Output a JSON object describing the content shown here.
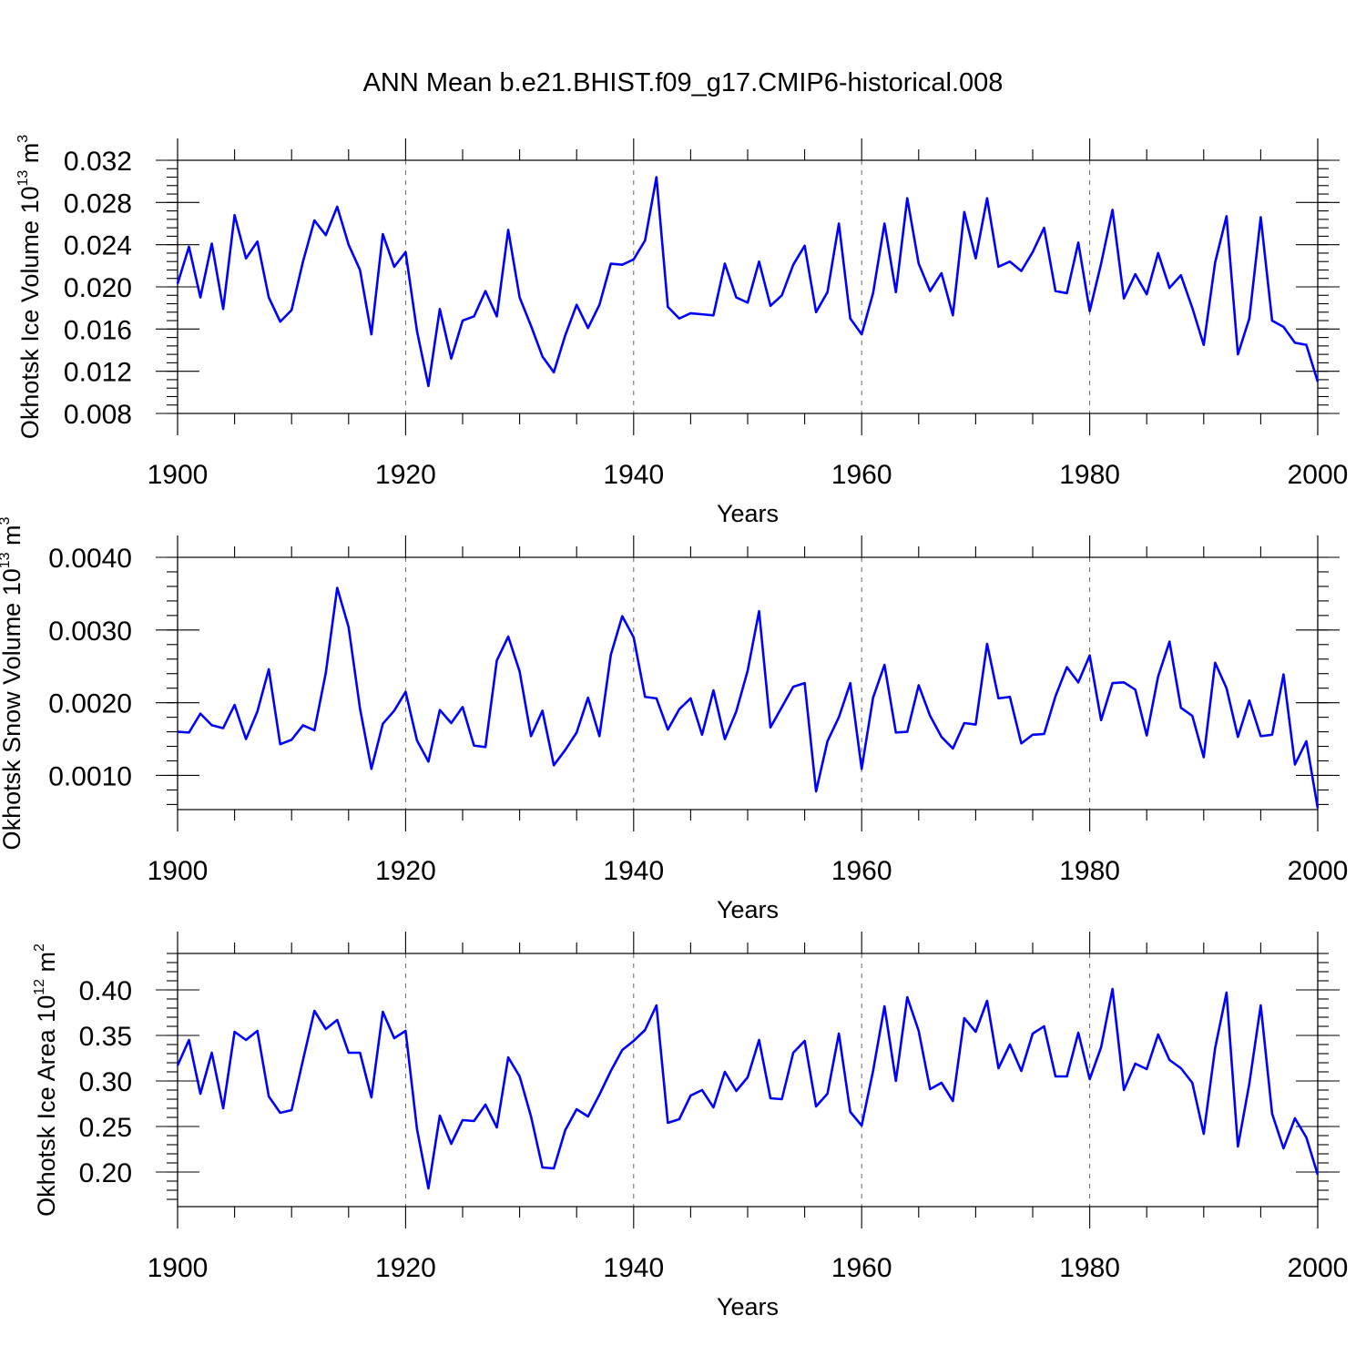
{
  "figure": {
    "title": "ANN Mean b.e21.BHIST.f09_g17.CMIP6-historical.008",
    "line_color": "#0000ff"
  },
  "chart_data": [
    {
      "type": "line",
      "ylabel": "Okhotsk Ice Volume 10",
      "ylabel_exponent": "13",
      "ylabel_unit": "m",
      "ylabel_unit_exponent": "3",
      "xlabel": "Years",
      "xlim": [
        1900,
        2000
      ],
      "ylim": [
        0.008,
        0.032
      ],
      "x_ticks": [
        1900,
        1920,
        1940,
        1960,
        1980,
        2000
      ],
      "y_ticks": [
        "0.008",
        "0.012",
        "0.016",
        "0.020",
        "0.024",
        "0.028",
        "0.032"
      ],
      "grid": "vertical dashed at major x ticks",
      "x_start": 1900,
      "values": [
        0.0203,
        0.0238,
        0.019,
        0.0241,
        0.0179,
        0.0268,
        0.0227,
        0.0243,
        0.019,
        0.0167,
        0.0178,
        0.0224,
        0.0263,
        0.0249,
        0.0276,
        0.024,
        0.0216,
        0.0155,
        0.025,
        0.0219,
        0.0233,
        0.0158,
        0.0106,
        0.0179,
        0.0132,
        0.0168,
        0.0172,
        0.0196,
        0.0172,
        0.0254,
        0.019,
        0.0163,
        0.0134,
        0.0119,
        0.0154,
        0.0183,
        0.0161,
        0.0183,
        0.0222,
        0.0221,
        0.0226,
        0.0244,
        0.0304,
        0.0181,
        0.017,
        0.0175,
        0.0174,
        0.0173,
        0.0222,
        0.019,
        0.0185,
        0.0224,
        0.0182,
        0.0192,
        0.0221,
        0.0239,
        0.0176,
        0.0195,
        0.026,
        0.017,
        0.0155,
        0.0194,
        0.026,
        0.0195,
        0.0284,
        0.0222,
        0.0196,
        0.0213,
        0.0173,
        0.0271,
        0.0227,
        0.0284,
        0.0219,
        0.0224,
        0.0215,
        0.0233,
        0.0256,
        0.0196,
        0.0194,
        0.0242,
        0.0177,
        0.0222,
        0.0273,
        0.0189,
        0.0212,
        0.0193,
        0.0232,
        0.0199,
        0.0211,
        0.018,
        0.0145,
        0.0223,
        0.0267,
        0.0136,
        0.017,
        0.0266,
        0.0168,
        0.0162,
        0.0147,
        0.0145,
        0.011
      ]
    },
    {
      "type": "line",
      "ylabel": "Okhotsk Snow Volume 10",
      "ylabel_exponent": "13",
      "ylabel_unit": "m",
      "ylabel_unit_exponent": "3",
      "xlabel": "Years",
      "xlim": [
        1900,
        2000
      ],
      "ylim": [
        0.00053,
        0.004
      ],
      "x_ticks": [
        1900,
        1920,
        1940,
        1960,
        1980,
        2000
      ],
      "y_ticks": [
        "0.0010",
        "0.0020",
        "0.0030",
        "0.0040"
      ],
      "grid": "vertical dashed at major x ticks",
      "x_start": 1900,
      "values": [
        0.0016,
        0.00159,
        0.00185,
        0.00169,
        0.00165,
        0.00197,
        0.0015,
        0.00188,
        0.00246,
        0.00143,
        0.00149,
        0.00169,
        0.00162,
        0.00241,
        0.00358,
        0.00304,
        0.00192,
        0.00109,
        0.00171,
        0.00189,
        0.00215,
        0.00148,
        0.00119,
        0.0019,
        0.00172,
        0.00194,
        0.00141,
        0.00139,
        0.00258,
        0.00291,
        0.00243,
        0.00154,
        0.00189,
        0.00114,
        0.00135,
        0.00159,
        0.00207,
        0.00154,
        0.00266,
        0.00319,
        0.0029,
        0.00208,
        0.00206,
        0.00163,
        0.00191,
        0.00206,
        0.00156,
        0.00217,
        0.0015,
        0.00188,
        0.00244,
        0.00326,
        0.00166,
        0.00194,
        0.00222,
        0.00227,
        0.00078,
        0.00147,
        0.0018,
        0.00227,
        0.00109,
        0.00207,
        0.00252,
        0.00159,
        0.0016,
        0.00224,
        0.00182,
        0.00153,
        0.00137,
        0.00172,
        0.0017,
        0.00281,
        0.00206,
        0.00208,
        0.00144,
        0.00156,
        0.00157,
        0.00209,
        0.00249,
        0.00228,
        0.00265,
        0.00176,
        0.00227,
        0.00228,
        0.00218,
        0.00155,
        0.00236,
        0.00284,
        0.00193,
        0.00182,
        0.00125,
        0.00255,
        0.0022,
        0.00153,
        0.00203,
        0.00154,
        0.00156,
        0.00239,
        0.00115,
        0.00147,
        0.00055
      ]
    },
    {
      "type": "line",
      "ylabel": "Okhotsk Ice Area 10",
      "ylabel_exponent": "12",
      "ylabel_unit": "m",
      "ylabel_unit_exponent": "2",
      "xlabel": "Years",
      "xlim": [
        1900,
        2000
      ],
      "ylim": [
        0.162,
        0.44
      ],
      "x_ticks": [
        1900,
        1920,
        1940,
        1960,
        1980,
        2000
      ],
      "y_ticks": [
        "0.20",
        "0.25",
        "0.30",
        "0.35",
        "0.40"
      ],
      "grid": "vertical dashed at major x ticks",
      "x_start": 1900,
      "values": [
        0.317,
        0.345,
        0.286,
        0.331,
        0.27,
        0.354,
        0.345,
        0.355,
        0.283,
        0.265,
        0.268,
        0.323,
        0.377,
        0.357,
        0.367,
        0.331,
        0.331,
        0.282,
        0.376,
        0.347,
        0.355,
        0.247,
        0.182,
        0.262,
        0.231,
        0.257,
        0.256,
        0.274,
        0.249,
        0.326,
        0.305,
        0.261,
        0.205,
        0.204,
        0.246,
        0.269,
        0.261,
        0.285,
        0.311,
        0.334,
        0.344,
        0.356,
        0.383,
        0.254,
        0.258,
        0.284,
        0.29,
        0.271,
        0.31,
        0.289,
        0.304,
        0.345,
        0.281,
        0.28,
        0.331,
        0.344,
        0.272,
        0.286,
        0.352,
        0.266,
        0.251,
        0.311,
        0.382,
        0.3,
        0.392,
        0.355,
        0.291,
        0.298,
        0.278,
        0.369,
        0.354,
        0.388,
        0.314,
        0.34,
        0.311,
        0.352,
        0.36,
        0.305,
        0.305,
        0.353,
        0.302,
        0.337,
        0.401,
        0.29,
        0.319,
        0.313,
        0.351,
        0.323,
        0.314,
        0.298,
        0.242,
        0.336,
        0.397,
        0.228,
        0.297,
        0.383,
        0.264,
        0.226,
        0.259,
        0.238,
        0.197
      ]
    }
  ]
}
